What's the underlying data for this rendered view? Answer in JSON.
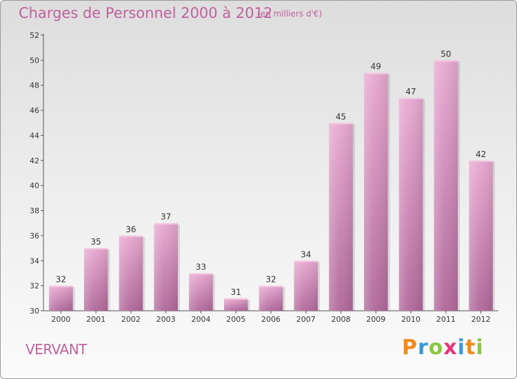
{
  "header": {
    "title": "Charges de Personnel 2000 à 2012",
    "subtitle": "(en milliers d'€)"
  },
  "footer": {
    "commune": "VERVANT",
    "logo_text": "Proxiti",
    "logo_colors": [
      "#f08a1c",
      "#3a9ad9",
      "#8cc63f",
      "#e8337a",
      "#3a9ad9",
      "#f08a1c",
      "#8cc63f"
    ]
  },
  "chart_data": {
    "type": "bar",
    "title": "Charges de Personnel 2000 à 2012",
    "subtitle": "(en milliers d'€)",
    "xlabel": "",
    "ylabel": "",
    "categories": [
      "2000",
      "2001",
      "2002",
      "2003",
      "2004",
      "2005",
      "2006",
      "2007",
      "2008",
      "2009",
      "2010",
      "2011",
      "2012"
    ],
    "values": [
      32,
      35,
      36,
      37,
      33,
      31,
      32,
      34,
      45,
      49,
      47,
      50,
      42
    ],
    "ylim": [
      30,
      52
    ],
    "yticks": [
      30,
      32,
      34,
      36,
      38,
      40,
      42,
      44,
      46,
      48,
      50,
      52
    ],
    "grid": false,
    "bar_color": "#c979ad",
    "bar_color_light": "#e8a8d0"
  }
}
